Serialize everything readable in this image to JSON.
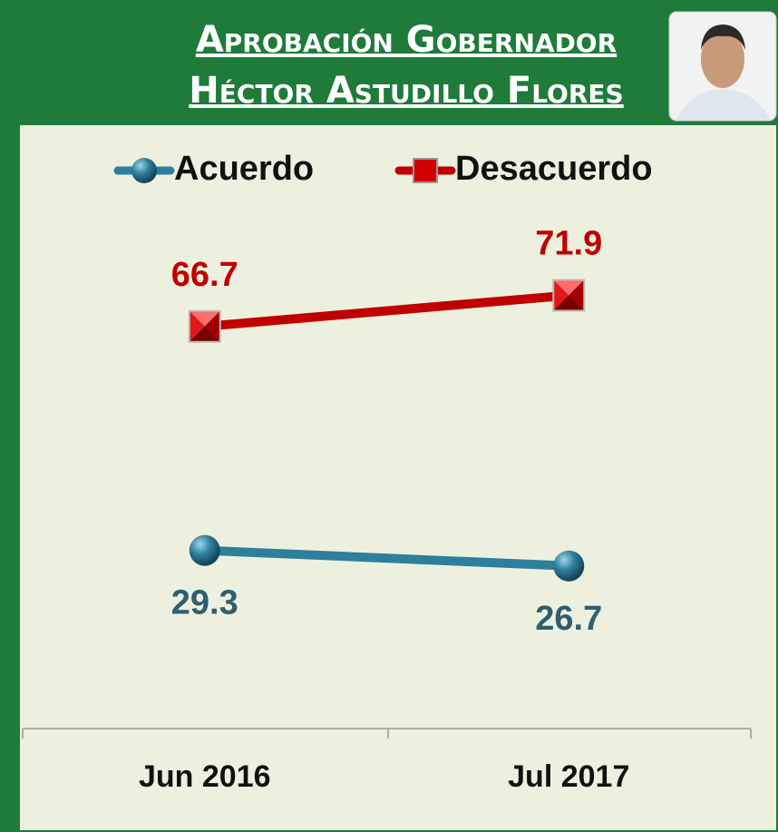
{
  "chart_data": {
    "type": "line",
    "title": "Aprobación Gobernador",
    "subtitle": "Héctor Astudillo Flores",
    "categories": [
      "Jun 2016",
      "Jul 2017"
    ],
    "series": [
      {
        "name": "Acuerdo",
        "color": "#2e7f9c",
        "values": [
          29.3,
          26.7
        ]
      },
      {
        "name": "Desacuerdo",
        "color": "#c00000",
        "values": [
          66.7,
          71.9
        ]
      }
    ],
    "ylim": [
      0,
      100
    ]
  }
}
